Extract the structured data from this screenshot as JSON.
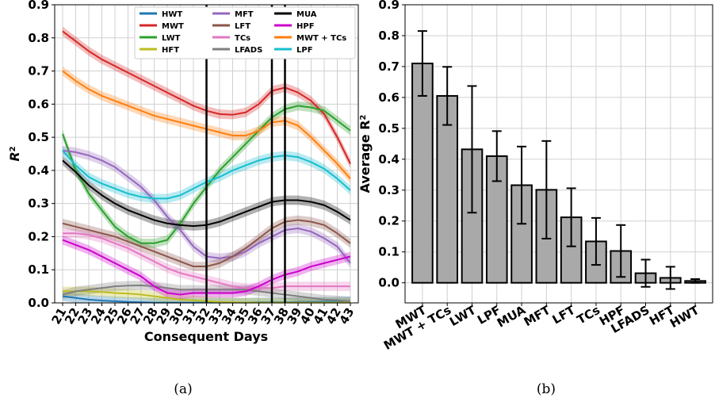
{
  "chart_data": [
    {
      "type": "line",
      "caption": "(a)",
      "xlabel": "Consequent Days",
      "ylabel": "R2",
      "ylabel_base": "R",
      "ylabel_sup": "2",
      "ylim": [
        0.0,
        0.9
      ],
      "yticks": [
        "0.0",
        "0.1",
        "0.2",
        "0.3",
        "0.4",
        "0.5",
        "0.6",
        "0.7",
        "0.8",
        "0.9"
      ],
      "x": [
        "21",
        "22",
        "23",
        "24",
        "25",
        "26",
        "27",
        "28",
        "29",
        "30",
        "31",
        "32",
        "33",
        "34",
        "35",
        "36",
        "37",
        "38",
        "39",
        "40",
        "41",
        "42",
        "43"
      ],
      "grid": true,
      "legend_position": "top-right",
      "vlines": [
        "32",
        "37",
        "38"
      ],
      "series": [
        {
          "name": "HWT",
          "color": "#1f77b4",
          "values": [
            0.02,
            0.015,
            0.01,
            0.007,
            0.005,
            0.003,
            0.002,
            0.001,
            0.001,
            0.001,
            0.001,
            0.001,
            0.001,
            0.001,
            0.001,
            0.002,
            0.002,
            0.002,
            0.003,
            0.003,
            0.004,
            0.004,
            0.005
          ]
        },
        {
          "name": "MWT",
          "color": "#d62728",
          "values": [
            0.82,
            0.79,
            0.76,
            0.735,
            0.715,
            0.695,
            0.675,
            0.655,
            0.635,
            0.615,
            0.595,
            0.58,
            0.57,
            0.568,
            0.575,
            0.6,
            0.64,
            0.65,
            0.635,
            0.61,
            0.57,
            0.5,
            0.42
          ]
        },
        {
          "name": "LWT",
          "color": "#2ca02c",
          "values": [
            0.51,
            0.4,
            0.33,
            0.28,
            0.23,
            0.2,
            0.18,
            0.18,
            0.19,
            0.24,
            0.3,
            0.35,
            0.4,
            0.44,
            0.48,
            0.52,
            0.56,
            0.585,
            0.595,
            0.59,
            0.58,
            0.55,
            0.52
          ]
        },
        {
          "name": "HFT",
          "color": "#bcbd22",
          "values": [
            0.035,
            0.035,
            0.035,
            0.033,
            0.03,
            0.028,
            0.025,
            0.02,
            0.015,
            0.01,
            0.008,
            0.005,
            0.003,
            0.002,
            0.001,
            0.001,
            0.001,
            0.001,
            0.001,
            0.001,
            0.001,
            0.001,
            0.001
          ]
        },
        {
          "name": "MFT",
          "color": "#9467bd",
          "values": [
            0.46,
            0.455,
            0.445,
            0.43,
            0.41,
            0.38,
            0.35,
            0.31,
            0.26,
            0.22,
            0.17,
            0.14,
            0.135,
            0.14,
            0.155,
            0.18,
            0.2,
            0.22,
            0.225,
            0.215,
            0.195,
            0.17,
            0.12
          ]
        },
        {
          "name": "LFT",
          "color": "#8c564b",
          "values": [
            0.24,
            0.23,
            0.22,
            0.21,
            0.2,
            0.185,
            0.17,
            0.155,
            0.14,
            0.125,
            0.11,
            0.11,
            0.12,
            0.14,
            0.165,
            0.195,
            0.225,
            0.245,
            0.25,
            0.245,
            0.235,
            0.21,
            0.18
          ]
        },
        {
          "name": "TCs",
          "color": "#e377c2",
          "values": [
            0.21,
            0.21,
            0.205,
            0.195,
            0.18,
            0.165,
            0.145,
            0.125,
            0.105,
            0.09,
            0.08,
            0.07,
            0.06,
            0.05,
            0.045,
            0.045,
            0.045,
            0.05,
            0.05,
            0.05,
            0.05,
            0.05,
            0.05
          ]
        },
        {
          "name": "LFADS",
          "color": "#7f7f7f",
          "values": [
            0.025,
            0.035,
            0.04,
            0.045,
            0.05,
            0.052,
            0.053,
            0.05,
            0.045,
            0.04,
            0.04,
            0.04,
            0.04,
            0.04,
            0.04,
            0.035,
            0.03,
            0.025,
            0.02,
            0.015,
            0.01,
            0.008,
            0.005
          ]
        },
        {
          "name": "MUA",
          "color": "#000000",
          "values": [
            0.43,
            0.395,
            0.355,
            0.325,
            0.3,
            0.28,
            0.265,
            0.25,
            0.24,
            0.235,
            0.232,
            0.235,
            0.245,
            0.26,
            0.275,
            0.29,
            0.305,
            0.31,
            0.31,
            0.305,
            0.295,
            0.275,
            0.25
          ]
        },
        {
          "name": "HPF",
          "color": "#cc00cc",
          "values": [
            0.19,
            0.175,
            0.16,
            0.14,
            0.12,
            0.1,
            0.08,
            0.05,
            0.03,
            0.025,
            0.03,
            0.03,
            0.03,
            0.03,
            0.035,
            0.05,
            0.07,
            0.085,
            0.095,
            0.11,
            0.12,
            0.13,
            0.14
          ]
        },
        {
          "name": "MWT + TCs",
          "color": "#ff7f0e",
          "values": [
            0.7,
            0.67,
            0.645,
            0.625,
            0.61,
            0.595,
            0.58,
            0.565,
            0.555,
            0.545,
            0.535,
            0.525,
            0.515,
            0.505,
            0.505,
            0.52,
            0.545,
            0.55,
            0.535,
            0.5,
            0.46,
            0.42,
            0.375
          ]
        },
        {
          "name": "LPF",
          "color": "#17becf",
          "values": [
            0.46,
            0.415,
            0.38,
            0.36,
            0.345,
            0.33,
            0.32,
            0.315,
            0.315,
            0.325,
            0.345,
            0.365,
            0.38,
            0.4,
            0.415,
            0.43,
            0.44,
            0.445,
            0.44,
            0.425,
            0.405,
            0.375,
            0.34
          ]
        }
      ]
    },
    {
      "type": "bar",
      "caption": "(b)",
      "ylabel": "Average R2",
      "ylabel_base": "Average R",
      "ylabel_sup": "2",
      "ylim": [
        -0.065,
        0.9
      ],
      "yticks": [
        "0.0",
        "0.1",
        "0.2",
        "0.3",
        "0.4",
        "0.5",
        "0.6",
        "0.7",
        "0.8",
        "0.9"
      ],
      "grid": true,
      "bar_color": "#a9a9a9",
      "categories": [
        "MWT",
        "MWT + TCs",
        "LWT",
        "LPF",
        "MUA",
        "MFT",
        "LFT",
        "TCs",
        "HPF",
        "LFADS",
        "HFT",
        "HWT"
      ],
      "values": [
        0.71,
        0.605,
        0.432,
        0.41,
        0.316,
        0.301,
        0.212,
        0.134,
        0.103,
        0.031,
        0.016,
        0.006
      ],
      "errors": [
        0.105,
        0.094,
        0.205,
        0.081,
        0.125,
        0.158,
        0.094,
        0.076,
        0.084,
        0.044,
        0.036,
        0.006
      ]
    }
  ]
}
